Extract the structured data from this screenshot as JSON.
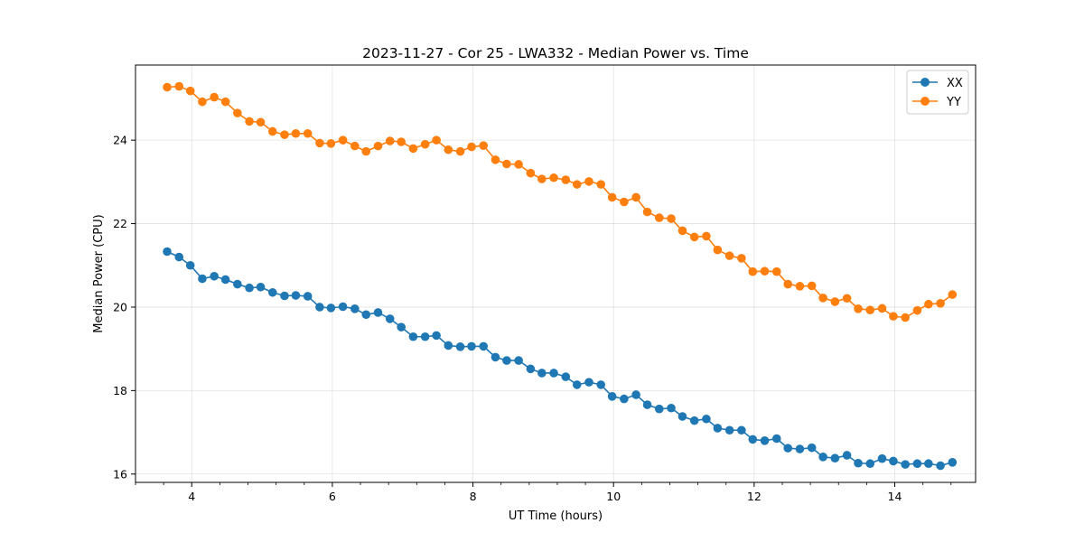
{
  "chart_data": {
    "type": "line",
    "title": "2023-11-27 - Cor 25 - LWA332 - Median Power vs. Time",
    "xlabel": "UT Time (hours)",
    "ylabel": "Median Power (CPU)",
    "xlim": [
      3.2,
      15.15
    ],
    "ylim": [
      15.8,
      25.8
    ],
    "xticks": [
      4,
      6,
      8,
      10,
      12,
      14
    ],
    "yticks": [
      16,
      18,
      20,
      22,
      24
    ],
    "xtick_labels": [
      "4",
      "6",
      "8",
      "10",
      "12",
      "14"
    ],
    "ytick_labels": [
      "16",
      "18",
      "20",
      "22",
      "24"
    ],
    "grid": true,
    "legend_position": "top-right",
    "series": [
      {
        "name": "XX",
        "color": "#1f77b4",
        "x": [
          3.65,
          3.82,
          3.98,
          4.15,
          4.32,
          4.48,
          4.65,
          4.82,
          4.98,
          5.15,
          5.32,
          5.48,
          5.65,
          5.82,
          5.98,
          6.15,
          6.32,
          6.48,
          6.65,
          6.82,
          6.98,
          7.15,
          7.32,
          7.48,
          7.65,
          7.82,
          7.98,
          8.15,
          8.32,
          8.48,
          8.65,
          8.82,
          8.98,
          9.15,
          9.32,
          9.48,
          9.65,
          9.82,
          9.98,
          10.15,
          10.32,
          10.48,
          10.65,
          10.82,
          10.98,
          11.15,
          11.32,
          11.48,
          11.65,
          11.82,
          11.98,
          12.15,
          12.32,
          12.48,
          12.65,
          12.82,
          12.98,
          13.15,
          13.32,
          13.48,
          13.65,
          13.82,
          13.98,
          14.15,
          14.32,
          14.48,
          14.65,
          14.82
        ],
        "values": [
          21.33,
          21.2,
          21.0,
          20.68,
          20.74,
          20.66,
          20.55,
          20.46,
          20.48,
          20.35,
          20.27,
          20.28,
          20.26,
          20.0,
          19.98,
          20.01,
          19.96,
          19.82,
          19.87,
          19.72,
          19.52,
          19.29,
          19.29,
          19.32,
          19.08,
          19.05,
          19.06,
          19.06,
          18.8,
          18.72,
          18.72,
          18.52,
          18.42,
          18.42,
          18.33,
          18.14,
          18.2,
          18.14,
          17.86,
          17.8,
          17.9,
          17.66,
          17.56,
          17.58,
          17.38,
          17.28,
          17.32,
          17.1,
          17.05,
          17.05,
          16.83,
          16.8,
          16.85,
          16.62,
          16.6,
          16.63,
          16.41,
          16.38,
          16.45,
          16.26,
          16.25,
          16.37,
          16.31,
          16.23,
          16.25,
          16.25,
          16.2,
          16.28
        ]
      },
      {
        "name": "YY",
        "color": "#ff7f0e",
        "x": [
          3.65,
          3.82,
          3.98,
          4.15,
          4.32,
          4.48,
          4.65,
          4.82,
          4.98,
          5.15,
          5.32,
          5.48,
          5.65,
          5.82,
          5.98,
          6.15,
          6.32,
          6.48,
          6.65,
          6.82,
          6.98,
          7.15,
          7.32,
          7.48,
          7.65,
          7.82,
          7.98,
          8.15,
          8.32,
          8.48,
          8.65,
          8.82,
          8.98,
          9.15,
          9.32,
          9.48,
          9.65,
          9.82,
          9.98,
          10.15,
          10.32,
          10.48,
          10.65,
          10.82,
          10.98,
          11.15,
          11.32,
          11.48,
          11.65,
          11.82,
          11.98,
          12.15,
          12.32,
          12.48,
          12.65,
          12.82,
          12.98,
          13.15,
          13.32,
          13.48,
          13.65,
          13.82,
          13.98,
          14.15,
          14.32,
          14.48,
          14.65,
          14.82
        ],
        "values": [
          25.27,
          25.29,
          25.18,
          24.92,
          25.03,
          24.92,
          24.65,
          24.45,
          24.43,
          24.21,
          24.13,
          24.16,
          24.16,
          23.93,
          23.92,
          24.0,
          23.86,
          23.73,
          23.86,
          23.98,
          23.96,
          23.8,
          23.9,
          24.0,
          23.77,
          23.73,
          23.84,
          23.87,
          23.53,
          23.43,
          23.42,
          23.21,
          23.07,
          23.1,
          23.05,
          22.94,
          23.01,
          22.94,
          22.63,
          22.52,
          22.63,
          22.28,
          22.14,
          22.12,
          21.83,
          21.68,
          21.7,
          21.37,
          21.23,
          21.17,
          20.85,
          20.86,
          20.85,
          20.55,
          20.5,
          20.51,
          20.22,
          20.13,
          20.21,
          19.96,
          19.93,
          19.97,
          19.78,
          19.75,
          19.92,
          20.07,
          20.09,
          20.3
        ]
      }
    ]
  }
}
